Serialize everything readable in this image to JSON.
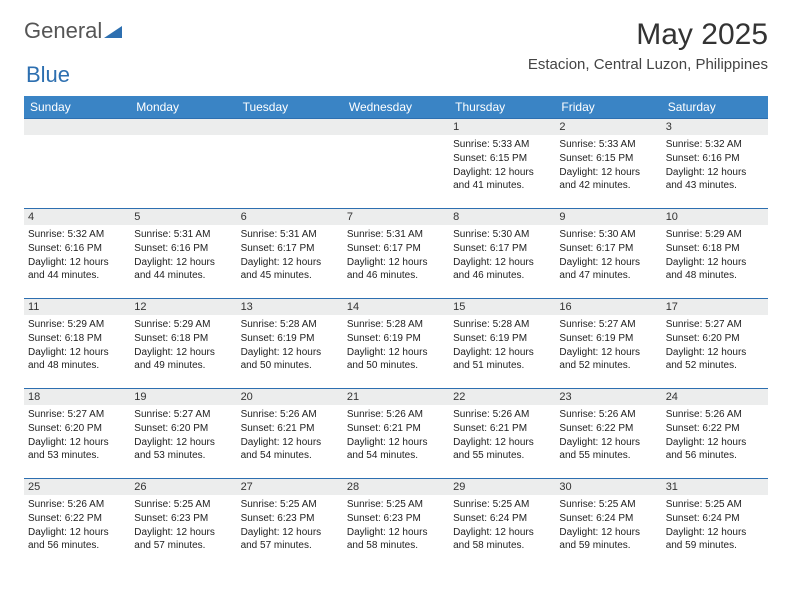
{
  "logo": {
    "word1": "General",
    "word2": "Blue",
    "color_blue": "#2d6fb0",
    "color_gray": "#555"
  },
  "title": "May 2025",
  "location": "Estacion, Central Luzon, Philippines",
  "header_bg": "#3a84c5",
  "daynum_bg": "#eceded",
  "border_color": "#2d6fb0",
  "weekdays": [
    "Sunday",
    "Monday",
    "Tuesday",
    "Wednesday",
    "Thursday",
    "Friday",
    "Saturday"
  ],
  "first_weekday_index": 4,
  "num_days": 31,
  "days": {
    "1": {
      "sunrise": "5:33 AM",
      "sunset": "6:15 PM",
      "daylight": "12 hours and 41 minutes."
    },
    "2": {
      "sunrise": "5:33 AM",
      "sunset": "6:15 PM",
      "daylight": "12 hours and 42 minutes."
    },
    "3": {
      "sunrise": "5:32 AM",
      "sunset": "6:16 PM",
      "daylight": "12 hours and 43 minutes."
    },
    "4": {
      "sunrise": "5:32 AM",
      "sunset": "6:16 PM",
      "daylight": "12 hours and 44 minutes."
    },
    "5": {
      "sunrise": "5:31 AM",
      "sunset": "6:16 PM",
      "daylight": "12 hours and 44 minutes."
    },
    "6": {
      "sunrise": "5:31 AM",
      "sunset": "6:17 PM",
      "daylight": "12 hours and 45 minutes."
    },
    "7": {
      "sunrise": "5:31 AM",
      "sunset": "6:17 PM",
      "daylight": "12 hours and 46 minutes."
    },
    "8": {
      "sunrise": "5:30 AM",
      "sunset": "6:17 PM",
      "daylight": "12 hours and 46 minutes."
    },
    "9": {
      "sunrise": "5:30 AM",
      "sunset": "6:17 PM",
      "daylight": "12 hours and 47 minutes."
    },
    "10": {
      "sunrise": "5:29 AM",
      "sunset": "6:18 PM",
      "daylight": "12 hours and 48 minutes."
    },
    "11": {
      "sunrise": "5:29 AM",
      "sunset": "6:18 PM",
      "daylight": "12 hours and 48 minutes."
    },
    "12": {
      "sunrise": "5:29 AM",
      "sunset": "6:18 PM",
      "daylight": "12 hours and 49 minutes."
    },
    "13": {
      "sunrise": "5:28 AM",
      "sunset": "6:19 PM",
      "daylight": "12 hours and 50 minutes."
    },
    "14": {
      "sunrise": "5:28 AM",
      "sunset": "6:19 PM",
      "daylight": "12 hours and 50 minutes."
    },
    "15": {
      "sunrise": "5:28 AM",
      "sunset": "6:19 PM",
      "daylight": "12 hours and 51 minutes."
    },
    "16": {
      "sunrise": "5:27 AM",
      "sunset": "6:19 PM",
      "daylight": "12 hours and 52 minutes."
    },
    "17": {
      "sunrise": "5:27 AM",
      "sunset": "6:20 PM",
      "daylight": "12 hours and 52 minutes."
    },
    "18": {
      "sunrise": "5:27 AM",
      "sunset": "6:20 PM",
      "daylight": "12 hours and 53 minutes."
    },
    "19": {
      "sunrise": "5:27 AM",
      "sunset": "6:20 PM",
      "daylight": "12 hours and 53 minutes."
    },
    "20": {
      "sunrise": "5:26 AM",
      "sunset": "6:21 PM",
      "daylight": "12 hours and 54 minutes."
    },
    "21": {
      "sunrise": "5:26 AM",
      "sunset": "6:21 PM",
      "daylight": "12 hours and 54 minutes."
    },
    "22": {
      "sunrise": "5:26 AM",
      "sunset": "6:21 PM",
      "daylight": "12 hours and 55 minutes."
    },
    "23": {
      "sunrise": "5:26 AM",
      "sunset": "6:22 PM",
      "daylight": "12 hours and 55 minutes."
    },
    "24": {
      "sunrise": "5:26 AM",
      "sunset": "6:22 PM",
      "daylight": "12 hours and 56 minutes."
    },
    "25": {
      "sunrise": "5:26 AM",
      "sunset": "6:22 PM",
      "daylight": "12 hours and 56 minutes."
    },
    "26": {
      "sunrise": "5:25 AM",
      "sunset": "6:23 PM",
      "daylight": "12 hours and 57 minutes."
    },
    "27": {
      "sunrise": "5:25 AM",
      "sunset": "6:23 PM",
      "daylight": "12 hours and 57 minutes."
    },
    "28": {
      "sunrise": "5:25 AM",
      "sunset": "6:23 PM",
      "daylight": "12 hours and 58 minutes."
    },
    "29": {
      "sunrise": "5:25 AM",
      "sunset": "6:24 PM",
      "daylight": "12 hours and 58 minutes."
    },
    "30": {
      "sunrise": "5:25 AM",
      "sunset": "6:24 PM",
      "daylight": "12 hours and 59 minutes."
    },
    "31": {
      "sunrise": "5:25 AM",
      "sunset": "6:24 PM",
      "daylight": "12 hours and 59 minutes."
    }
  },
  "labels": {
    "sunrise": "Sunrise:",
    "sunset": "Sunset:",
    "daylight": "Daylight:"
  }
}
